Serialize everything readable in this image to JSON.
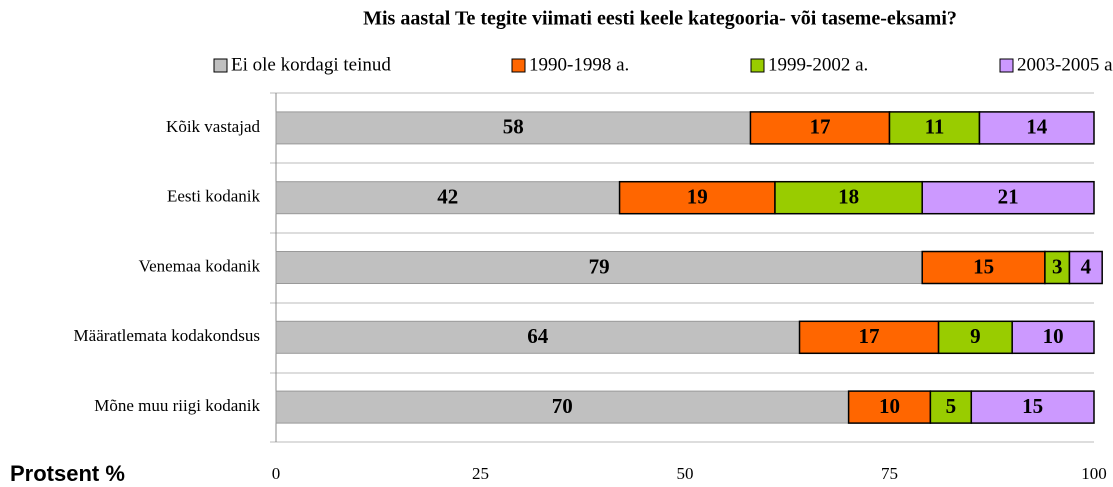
{
  "chart_data": {
    "type": "stacked-barh",
    "title": "Mis aastal Te tegite viimati eesti keele kategooria- või taseme-eksami?",
    "xlabel": "Protsent %",
    "categories": [
      "Kõik vastajad",
      "Eesti kodanik",
      "Venemaa kodanik",
      "Määratlemata kodakondsus",
      "Mõne muu riigi kodanik"
    ],
    "series": [
      {
        "name": "Ei ole kordagi teinud",
        "color": "#c0c0c0",
        "values": [
          58,
          42,
          79,
          64,
          70
        ]
      },
      {
        "name": "1990-1998 a.",
        "color": "#ff6600",
        "values": [
          17,
          19,
          15,
          17,
          10
        ]
      },
      {
        "name": "1999-2002 a.",
        "color": "#99cc00",
        "values": [
          11,
          18,
          3,
          9,
          5
        ]
      },
      {
        "name": "2003-2005 a.",
        "color": "#cc99ff",
        "values": [
          14,
          21,
          4,
          10,
          15
        ]
      }
    ],
    "xlim": [
      0,
      100
    ],
    "xticks": [
      0,
      25,
      50,
      75,
      100
    ]
  }
}
